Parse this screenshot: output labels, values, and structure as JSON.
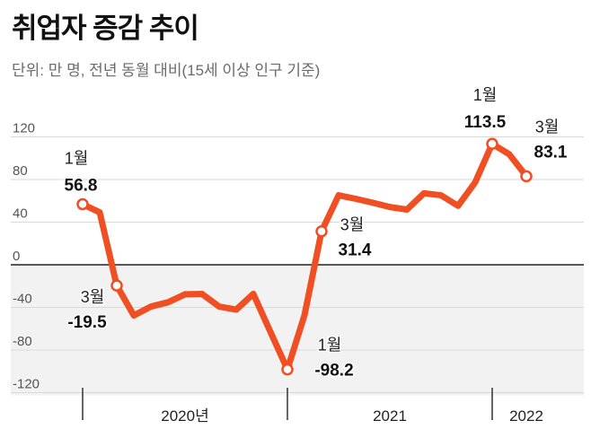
{
  "title": "취업자 증감 추이",
  "subtitle": "단위: 만 명, 전년 동월 대비(15세 이상 인구 기준)",
  "colors": {
    "line": "#f04e23",
    "negative_area": "#f2f2f2",
    "gridline": "#d9d9d9",
    "zero_line": "#222222"
  },
  "chart_data": {
    "type": "line",
    "title": "취업자 증감 추이",
    "x": [
      "2020-01",
      "2020-02",
      "2020-03",
      "2020-04",
      "2020-05",
      "2020-06",
      "2020-07",
      "2020-08",
      "2020-09",
      "2020-10",
      "2020-11",
      "2020-12",
      "2021-01",
      "2021-02",
      "2021-03",
      "2021-04",
      "2021-05",
      "2021-06",
      "2021-07",
      "2021-08",
      "2021-09",
      "2021-10",
      "2021-11",
      "2021-12",
      "2022-01",
      "2022-02",
      "2022-03"
    ],
    "series": [
      {
        "values": [
          56.8,
          49.2,
          -19.5,
          -47.6,
          -39.2,
          -35.2,
          -27.7,
          -27.4,
          -39.2,
          -42.1,
          -27.3,
          -62.8,
          -98.2,
          -47.3,
          31.4,
          65.2,
          61.9,
          58.2,
          54.2,
          51.8,
          67.1,
          65.2,
          55.3,
          77.3,
          113.5,
          103.7,
          83.1
        ]
      }
    ],
    "ylim": [
      -120,
      120
    ],
    "yticks": [
      120,
      80,
      40,
      0,
      -40,
      -80,
      -120
    ],
    "grid": true,
    "x_groups": [
      {
        "label": "2020년",
        "start": "2020-01"
      },
      {
        "label": "2021",
        "start": "2021-01"
      },
      {
        "label": "2022",
        "start": "2022-01"
      }
    ],
    "annotations": [
      {
        "x": "2020-01",
        "month_label": "1월",
        "value_label": "56.8"
      },
      {
        "x": "2020-03",
        "month_label": "3월",
        "value_label": "-19.5"
      },
      {
        "x": "2021-01",
        "month_label": "1월",
        "value_label": "-98.2"
      },
      {
        "x": "2021-03",
        "month_label": "3월",
        "value_label": "31.4"
      },
      {
        "x": "2022-01",
        "month_label": "1월",
        "value_label": "113.5"
      },
      {
        "x": "2022-03",
        "month_label": "3월",
        "value_label": "83.1"
      }
    ]
  }
}
